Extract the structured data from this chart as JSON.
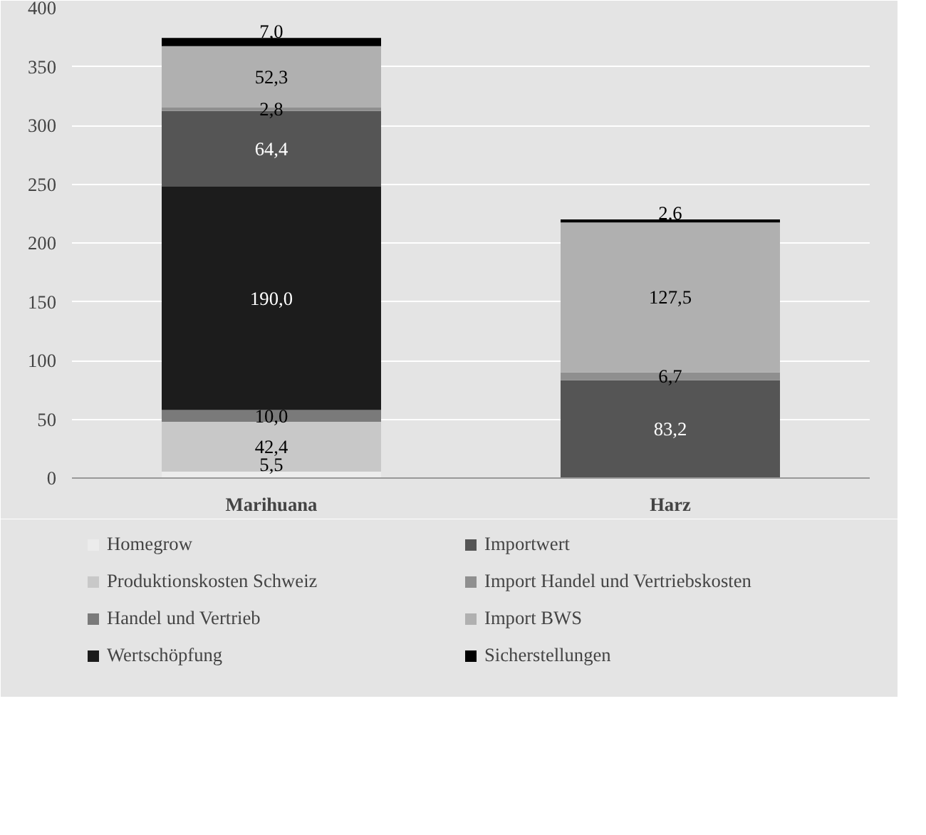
{
  "chart_data": {
    "type": "bar",
    "stacked": true,
    "categories": [
      "Marihuana",
      "Harz"
    ],
    "series": [
      {
        "name": "Homegrow",
        "color": "#ececec",
        "values": [
          5.5,
          null
        ],
        "value_labels": [
          "5,5",
          null
        ]
      },
      {
        "name": "Produktionskosten Schweiz",
        "color": "#c8c8c8",
        "values": [
          42.4,
          null
        ],
        "value_labels": [
          "42,4",
          null
        ]
      },
      {
        "name": "Handel und Vertrieb",
        "color": "#7a7a7a",
        "values": [
          10.0,
          null
        ],
        "value_labels": [
          "10,0",
          null
        ]
      },
      {
        "name": "Wertschöpfung",
        "color": "#1c1c1c",
        "values": [
          190.0,
          null
        ],
        "value_labels": [
          "190,0",
          null
        ]
      },
      {
        "name": "Importwert",
        "color": "#555555",
        "values": [
          64.4,
          83.2
        ],
        "value_labels": [
          "64,4",
          "83,2"
        ]
      },
      {
        "name": "Import Handel und Vertriebskosten",
        "color": "#8f8f8f",
        "values": [
          2.8,
          6.7
        ],
        "value_labels": [
          "2,8",
          "6,7"
        ]
      },
      {
        "name": "Import BWS",
        "color": "#b0b0b0",
        "values": [
          52.3,
          127.5
        ],
        "value_labels": [
          "52,3",
          "127,5"
        ]
      },
      {
        "name": "Sicherstellungen",
        "color": "#000000",
        "values": [
          7.0,
          2.6
        ],
        "value_labels": [
          "7,0",
          "2,6"
        ]
      }
    ],
    "ylim": [
      0,
      400
    ],
    "yticks": [
      0,
      50,
      100,
      150,
      200,
      250,
      300,
      350,
      400
    ],
    "grid": "y",
    "legend": "bottom"
  }
}
